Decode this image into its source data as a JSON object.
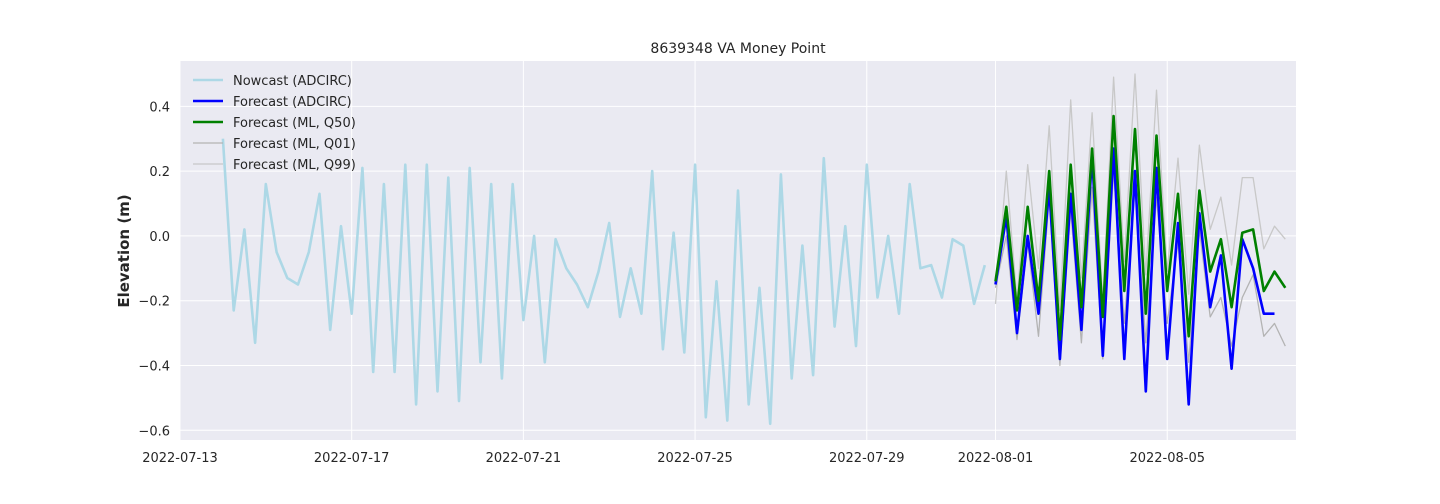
{
  "chart_data": {
    "type": "line",
    "title": "8639348 VA Money Point",
    "xlabel": "",
    "ylabel": "Elevation (m)",
    "xlim": [
      "2022-07-13",
      "2022-08-08"
    ],
    "ylim": [
      -0.63,
      0.54
    ],
    "x_ticks": [
      "2022-07-13",
      "2022-07-17",
      "2022-07-21",
      "2022-07-25",
      "2022-07-29",
      "2022-08-01",
      "2022-08-05"
    ],
    "y_ticks": [
      -0.6,
      -0.4,
      -0.2,
      0.0,
      0.2,
      0.4
    ],
    "y_tick_labels": [
      "−0.6",
      "−0.4",
      "−0.2",
      "0.0",
      "0.2",
      "0.4"
    ],
    "grid": true,
    "legend_position": "top-left",
    "colors": {
      "nowcast": "#add8e6",
      "forecast_adcirc": "#0000ff",
      "forecast_q50": "#008000",
      "forecast_q01": "#b3b3b3",
      "forecast_q99": "#c8c8c8"
    },
    "series": [
      {
        "name": "Nowcast (ADCIRC)",
        "start": "2022-07-14T00:00",
        "step_hours": 6,
        "values": [
          0.3,
          -0.23,
          0.02,
          -0.33,
          0.16,
          -0.05,
          -0.13,
          -0.15,
          -0.05,
          0.13,
          -0.29,
          0.03,
          -0.24,
          0.21,
          -0.42,
          0.16,
          -0.42,
          0.22,
          -0.52,
          0.22,
          -0.48,
          0.18,
          -0.51,
          0.21,
          -0.39,
          0.16,
          -0.44,
          0.16,
          -0.26,
          0.0,
          -0.39,
          -0.01,
          -0.1,
          -0.15,
          -0.22,
          -0.11,
          0.04,
          -0.25,
          -0.1,
          -0.24,
          0.2,
          -0.35,
          0.01,
          -0.36,
          0.22,
          -0.56,
          -0.14,
          -0.57,
          0.14,
          -0.52,
          -0.16,
          -0.58,
          0.19,
          -0.44,
          -0.03,
          -0.43,
          0.24,
          -0.28,
          0.03,
          -0.34,
          0.22,
          -0.19,
          0.0,
          -0.24,
          0.16,
          -0.1,
          -0.09,
          -0.19,
          -0.01,
          -0.03,
          -0.21,
          -0.09
        ]
      },
      {
        "name": "Forecast (ADCIRC)",
        "start": "2022-08-01T00:00",
        "step_hours": 6,
        "values": [
          -0.15,
          0.06,
          -0.3,
          0.0,
          -0.24,
          0.15,
          -0.38,
          0.13,
          -0.29,
          0.25,
          -0.37,
          0.27,
          -0.38,
          0.2,
          -0.48,
          0.21,
          -0.38,
          0.04,
          -0.52,
          0.07,
          -0.22,
          -0.06,
          -0.41,
          -0.01,
          -0.1,
          -0.24,
          -0.24
        ]
      },
      {
        "name": "Forecast (ML, Q50)",
        "start": "2022-08-01T00:00",
        "step_hours": 6,
        "values": [
          -0.14,
          0.09,
          -0.23,
          0.09,
          -0.2,
          0.2,
          -0.32,
          0.22,
          -0.22,
          0.27,
          -0.25,
          0.37,
          -0.17,
          0.33,
          -0.24,
          0.31,
          -0.17,
          0.13,
          -0.31,
          0.14,
          -0.11,
          -0.01,
          -0.22,
          0.01,
          0.02,
          -0.17,
          -0.11,
          -0.16
        ]
      },
      {
        "name": "Forecast (ML, Q01)",
        "start": "2022-08-01T00:00",
        "step_hours": 6,
        "values": [
          -0.16,
          0.0,
          -0.32,
          -0.02,
          -0.31,
          0.12,
          -0.4,
          0.08,
          -0.33,
          0.15,
          -0.38,
          0.2,
          -0.27,
          0.15,
          -0.33,
          0.12,
          -0.27,
          -0.02,
          -0.39,
          0.02,
          -0.25,
          -0.19,
          -0.34,
          -0.19,
          -0.12,
          -0.31,
          -0.27,
          -0.34
        ]
      },
      {
        "name": "Forecast (ML, Q99)",
        "start": "2022-08-01T00:00",
        "step_hours": 6,
        "values": [
          -0.21,
          0.2,
          -0.2,
          0.22,
          -0.1,
          0.34,
          -0.23,
          0.42,
          -0.13,
          0.38,
          -0.2,
          0.49,
          -0.08,
          0.5,
          -0.12,
          0.45,
          -0.11,
          0.24,
          -0.18,
          0.28,
          0.02,
          0.12,
          -0.09,
          0.18,
          0.18,
          -0.04,
          0.03,
          -0.01
        ]
      }
    ]
  }
}
